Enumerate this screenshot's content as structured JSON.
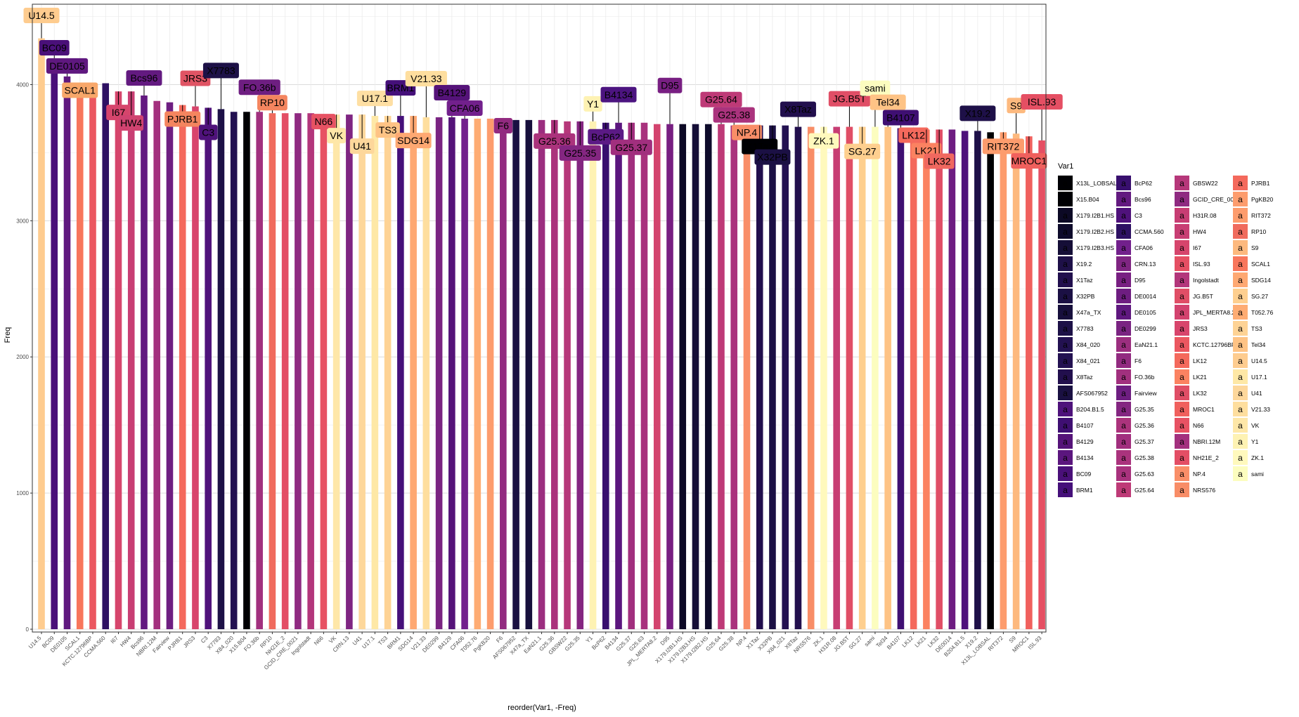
{
  "chart_data": {
    "type": "bar",
    "xlabel": "reorder(Var1, -Freq)",
    "ylabel": "Freq",
    "ylim": [
      0,
      4500
    ],
    "yticks": [
      0,
      1000,
      2000,
      3000,
      4000
    ],
    "grid": true,
    "legend_position": "right",
    "legend_title": "Var1",
    "legend_key_text": "a",
    "categories": [
      "U14.5",
      "BC09",
      "DE0105",
      "SCAL1",
      "KCTC.12796BP",
      "CCMA.560",
      "I67",
      "HW4",
      "Bcs96",
      "NBRI.12M",
      "Fairview",
      "PJRB1",
      "JRS3",
      "C3",
      "X7783",
      "X84_020",
      "X15.B04",
      "FO.36b",
      "RP10",
      "NH21E_2",
      "GCID_CRE_0021",
      "Ingolstadt",
      "N66",
      "VK",
      "CRN.13",
      "U41",
      "U17.1",
      "TS3",
      "BRM1",
      "SDG14",
      "V21.33",
      "DE0299",
      "B4129",
      "CFA06",
      "T052.76",
      "PgKB20",
      "F6",
      "AFS067952",
      "X47a_TX",
      "EaN21.1",
      "G25.36",
      "GBSW22",
      "G25.35",
      "Y1",
      "BcP62",
      "B4134",
      "G25.37",
      "G25.63",
      "JPL_MERTA8.2",
      "D95",
      "X179.I2B1.HS",
      "X179.I2B3.HS",
      "X179.I2B2.HS",
      "G25.64",
      "G25.38",
      "NP.4",
      "X1Taz",
      "X32PB",
      "X84_021",
      "X8Taz",
      "NRS576",
      "ZK.1",
      "H31R.08",
      "JG.B5T",
      "SG.27",
      "sami",
      "Tel34",
      "B4107",
      "LK12",
      "LK21",
      "LK32",
      "DE0014",
      "B204.B1.5",
      "X19.2",
      "X13L_LOBSAL",
      "RIT372",
      "S9",
      "MROC1",
      "ISL.93"
    ],
    "values": [
      4340,
      4090,
      4060,
      4010,
      4000,
      4010,
      3950,
      3950,
      3920,
      3880,
      3870,
      3850,
      3840,
      3830,
      3820,
      3800,
      3800,
      3800,
      3790,
      3790,
      3790,
      3790,
      3780,
      3780,
      3780,
      3780,
      3770,
      3770,
      3770,
      3770,
      3760,
      3760,
      3760,
      3750,
      3750,
      3750,
      3750,
      3740,
      3740,
      3740,
      3740,
      3730,
      3730,
      3730,
      3720,
      3720,
      3720,
      3720,
      3710,
      3710,
      3710,
      3710,
      3710,
      3710,
      3700,
      3700,
      3700,
      3700,
      3700,
      3690,
      3690,
      3690,
      3690,
      3690,
      3690,
      3690,
      3690,
      3680,
      3680,
      3670,
      3670,
      3670,
      3660,
      3660,
      3650,
      3650,
      3640,
      3620,
      3590
    ],
    "bar_colors": [
      "#FECC8F",
      "#4A1079",
      "#5F187F",
      "#F8765C",
      "#EB5760",
      "#2E1163",
      "#D6456C",
      "#C83E73",
      "#631A80",
      "#A3307E",
      "#6E1E81",
      "#F4695C",
      "#D8456C",
      "#4F127B",
      "#1D1147",
      "#231151",
      "#000004",
      "#A1307E",
      "#F06B5D",
      "#E34E65",
      "#8F2A81",
      "#B3367B",
      "#E75263",
      "#FEE7A8",
      "#7F2582",
      "#FDD79B",
      "#FEE8A6",
      "#FED395",
      "#45107A",
      "#FEA872",
      "#FEDE9E",
      "#7A2482",
      "#551379",
      "#72208C",
      "#FEAC73",
      "#FD9C6D",
      "#922A80",
      "#1A1042",
      "#170F3C",
      "#9B2E7F",
      "#AB337C",
      "#B6377A",
      "#842681",
      "#FEF2B3",
      "#380F6E",
      "#5B167E",
      "#A12F7E",
      "#A8327D",
      "#D3436E",
      "#781F82",
      "#0C0925",
      "#150E37",
      "#0E0B2B",
      "#BE3A77",
      "#AA337D",
      "#F98E68",
      "#210F4D",
      "#1B1044",
      "#231151",
      "#220F4D",
      "#F88D67",
      "#FFF9BD",
      "#C73D73",
      "#E04E66",
      "#FECF8F",
      "#FCFDBF",
      "#FEC385",
      "#3F0F72",
      "#F4695C",
      "#FB8261",
      "#E04E66",
      "#6E1D81",
      "#4E127B",
      "#1E1048",
      "#000004",
      "#FD9C6D",
      "#FDB97E",
      "#F0605D",
      "#E54F63"
    ],
    "annotations": [
      {
        "text": "U14.5",
        "target": "U14.5",
        "fill": "#FECC8F",
        "color": "#000000"
      },
      {
        "text": "BC09",
        "target": "BC09",
        "fill": "#4A1079",
        "color": "#000000"
      },
      {
        "text": "DE0105",
        "target": "DE0105",
        "fill": "#5F187F",
        "color": "#000000"
      },
      {
        "text": "SCAL1",
        "target": "SCAL1",
        "fill": "#F8A76A",
        "color": "#000000"
      },
      {
        "text": "I67",
        "target": "I67",
        "fill": "#D6456C",
        "color": "#000000"
      },
      {
        "text": "HW4",
        "target": "HW4",
        "fill": "#D04370",
        "color": "#000000"
      },
      {
        "text": "Bcs96",
        "target": "Bcs96",
        "fill": "#631A80",
        "color": "#000000"
      },
      {
        "text": "PJRB1",
        "target": "PJRB1",
        "fill": "#F4855F",
        "color": "#000000"
      },
      {
        "text": "JRS3",
        "target": "JRS3",
        "fill": "#E05464",
        "color": "#000000"
      },
      {
        "text": "C3",
        "target": "C3",
        "fill": "#4F127B",
        "color": "#000000"
      },
      {
        "text": "X7783",
        "target": "X7783",
        "fill": "#1D1147",
        "color": "#000000"
      },
      {
        "text": "FO.36b",
        "target": "FO.36b",
        "fill": "#6E1E81",
        "color": "#000000"
      },
      {
        "text": "RP10",
        "target": "RP10",
        "fill": "#F4855F",
        "color": "#000000"
      },
      {
        "text": "N66",
        "target": "N66",
        "fill": "#E75263",
        "color": "#000000"
      },
      {
        "text": "VK",
        "target": "VK",
        "fill": "#FEE7A8",
        "color": "#000000"
      },
      {
        "text": "U41",
        "target": "U41",
        "fill": "#FDD79B",
        "color": "#000000"
      },
      {
        "text": "U17.1",
        "target": "U17.1",
        "fill": "#FEDFA3",
        "color": "#000000"
      },
      {
        "text": "TS3",
        "target": "TS3",
        "fill": "#FEC385",
        "color": "#000000"
      },
      {
        "text": "BRM1",
        "target": "BRM1",
        "fill": "#45107A",
        "color": "#000000"
      },
      {
        "text": "SDG14",
        "target": "SDG14",
        "fill": "#FEA872",
        "color": "#000000"
      },
      {
        "text": "V21.33",
        "target": "V21.33",
        "fill": "#FEDE9E",
        "color": "#000000"
      },
      {
        "text": "B4129",
        "target": "B4129",
        "fill": "#551379",
        "color": "#000000"
      },
      {
        "text": "CFA06",
        "target": "CFA06",
        "fill": "#72208C",
        "color": "#000000"
      },
      {
        "text": "F6",
        "target": "F6",
        "fill": "#922A80",
        "color": "#000000"
      },
      {
        "text": "G25.36",
        "target": "G25.36",
        "fill": "#AB337C",
        "color": "#000000"
      },
      {
        "text": "G25.35",
        "target": "G25.35",
        "fill": "#842681",
        "color": "#000000"
      },
      {
        "text": "Y1",
        "target": "Y1",
        "fill": "#FEF2B3",
        "color": "#000000"
      },
      {
        "text": "BcP62",
        "target": "BcP62",
        "fill": "#5B1A85",
        "color": "#000000"
      },
      {
        "text": "B4134",
        "target": "B4134",
        "fill": "#4C1480",
        "color": "#000000"
      },
      {
        "text": "G25.37",
        "target": "G25.37",
        "fill": "#A12F7E",
        "color": "#000000"
      },
      {
        "text": "D95",
        "target": "D95",
        "fill": "#781F82",
        "color": "#000000"
      },
      {
        "text": "G25.64",
        "target": "G25.64",
        "fill": "#BE3A77",
        "color": "#000000"
      },
      {
        "text": "G25.38",
        "target": "G25.38",
        "fill": "#AA337D",
        "color": "#000000"
      },
      {
        "text": "NP.4",
        "target": "NP.4",
        "fill": "#F98E68",
        "color": "#000000"
      },
      {
        "text": "X1Taz",
        "target": "X1Taz",
        "fill": "#000004",
        "color": "#000000"
      },
      {
        "text": "X32PB",
        "target": "X32PB",
        "fill": "#1B1044",
        "color": "#000000"
      },
      {
        "text": "X8Taz",
        "target": "X8Taz",
        "fill": "#220F4D",
        "color": "#000000"
      },
      {
        "text": "ZK.1",
        "target": "ZK.1",
        "fill": "#FFF9BD",
        "color": "#000000"
      },
      {
        "text": "JG.B5T",
        "target": "JG.B5T",
        "fill": "#E04E66",
        "color": "#000000"
      },
      {
        "text": "SG.27",
        "target": "SG.27",
        "fill": "#FECF8F",
        "color": "#000000"
      },
      {
        "text": "sami",
        "target": "sami",
        "fill": "#FCFDBF",
        "color": "#000000"
      },
      {
        "text": "Tel34",
        "target": "Tel34",
        "fill": "#FEC385",
        "color": "#000000"
      },
      {
        "text": "B4107",
        "target": "B4107",
        "fill": "#3F0F72",
        "color": "#000000"
      },
      {
        "text": "LK12",
        "target": "LK12",
        "fill": "#F4695C",
        "color": "#000000"
      },
      {
        "text": "LK21",
        "target": "LK21",
        "fill": "#FB8261",
        "color": "#000000"
      },
      {
        "text": "LK32",
        "target": "LK32",
        "fill": "#F0685F",
        "color": "#000000"
      },
      {
        "text": "X19.2",
        "target": "X19.2",
        "fill": "#1E1048",
        "color": "#000000"
      },
      {
        "text": "RIT372",
        "target": "RIT372",
        "fill": "#FD9C6D",
        "color": "#000000"
      },
      {
        "text": "S9",
        "target": "S9",
        "fill": "#FDB97E",
        "color": "#000000"
      },
      {
        "text": "MROC1",
        "target": "MROC1",
        "fill": "#F0605D",
        "color": "#000000"
      },
      {
        "text": "ISL.93",
        "target": "ISL.93",
        "fill": "#E54F63",
        "color": "#000000"
      }
    ],
    "legend_columns": [
      [
        {
          "label": "X13L_LOBSAL",
          "color": "#000004"
        },
        {
          "label": "X15.B04",
          "color": "#000004"
        },
        {
          "label": "X179.I2B1.HS",
          "color": "#0C0925"
        },
        {
          "label": "X179.I2B2.HS",
          "color": "#0E0B2B"
        },
        {
          "label": "X179.I2B3.HS",
          "color": "#150E37"
        },
        {
          "label": "X19.2",
          "color": "#1E1048"
        },
        {
          "label": "X1Taz",
          "color": "#210F4D"
        },
        {
          "label": "X32PB",
          "color": "#1B1044"
        },
        {
          "label": "X47a_TX",
          "color": "#170F3C"
        },
        {
          "label": "X7783",
          "color": "#1D1147"
        },
        {
          "label": "X84_020",
          "color": "#231151"
        },
        {
          "label": "X84_021",
          "color": "#231151"
        },
        {
          "label": "X8Taz",
          "color": "#220F4D"
        },
        {
          "label": "AFS067952",
          "color": "#1A1042"
        },
        {
          "label": "B204.B1.5",
          "color": "#4E127B"
        },
        {
          "label": "B4107",
          "color": "#3F0F72"
        },
        {
          "label": "B4129",
          "color": "#551379"
        },
        {
          "label": "B4134",
          "color": "#5B167E"
        },
        {
          "label": "BC09",
          "color": "#4A1079"
        },
        {
          "label": "BRM1",
          "color": "#45107A"
        }
      ],
      [
        {
          "label": "BcP62",
          "color": "#380F6E"
        },
        {
          "label": "Bcs96",
          "color": "#631A80"
        },
        {
          "label": "C3",
          "color": "#4F127B"
        },
        {
          "label": "CCMA.560",
          "color": "#2E1163"
        },
        {
          "label": "CFA06",
          "color": "#72208C"
        },
        {
          "label": "CRN.13",
          "color": "#7F2582"
        },
        {
          "label": "D95",
          "color": "#781F82"
        },
        {
          "label": "DE0014",
          "color": "#6E1D81"
        },
        {
          "label": "DE0105",
          "color": "#5F187F"
        },
        {
          "label": "DE0299",
          "color": "#7A2482"
        },
        {
          "label": "EaN21.1",
          "color": "#9B2E7F"
        },
        {
          "label": "F6",
          "color": "#922A80"
        },
        {
          "label": "FO.36b",
          "color": "#A1307E"
        },
        {
          "label": "Fairview",
          "color": "#6E1E81"
        },
        {
          "label": "G25.35",
          "color": "#842681"
        },
        {
          "label": "G25.36",
          "color": "#AB337C"
        },
        {
          "label": "G25.37",
          "color": "#A12F7E"
        },
        {
          "label": "G25.38",
          "color": "#AA337D"
        },
        {
          "label": "G25.63",
          "color": "#A8327D"
        },
        {
          "label": "G25.64",
          "color": "#BE3A77"
        }
      ],
      [
        {
          "label": "GBSW22",
          "color": "#B6377A"
        },
        {
          "label": "GCID_CRE_0021",
          "color": "#8F2A81"
        },
        {
          "label": "H31R.08",
          "color": "#C73D73"
        },
        {
          "label": "HW4",
          "color": "#C83E73"
        },
        {
          "label": "I67",
          "color": "#D6456C"
        },
        {
          "label": "ISL.93",
          "color": "#E54F63"
        },
        {
          "label": "Ingolstadt",
          "color": "#B3367B"
        },
        {
          "label": "JG.B5T",
          "color": "#E04E66"
        },
        {
          "label": "JPL_MERTA8.2",
          "color": "#D3436E"
        },
        {
          "label": "JRS3",
          "color": "#D8456C"
        },
        {
          "label": "KCTC.12796BP",
          "color": "#EB5760"
        },
        {
          "label": "LK12",
          "color": "#F4695C"
        },
        {
          "label": "LK21",
          "color": "#FB8261"
        },
        {
          "label": "LK32",
          "color": "#E04E66"
        },
        {
          "label": "MROC1",
          "color": "#F0605D"
        },
        {
          "label": "N66",
          "color": "#E75263"
        },
        {
          "label": "NBRI.12M",
          "color": "#A3307E"
        },
        {
          "label": "NH21E_2",
          "color": "#E34E65"
        },
        {
          "label": "NP.4",
          "color": "#F98E68"
        },
        {
          "label": "NRS576",
          "color": "#F88D67"
        }
      ],
      [
        {
          "label": "PJRB1",
          "color": "#F4695C"
        },
        {
          "label": "PgKB20",
          "color": "#FD9C6D"
        },
        {
          "label": "RIT372",
          "color": "#FD9C6D"
        },
        {
          "label": "RP10",
          "color": "#F06B5D"
        },
        {
          "label": "S9",
          "color": "#FDB97E"
        },
        {
          "label": "SCAL1",
          "color": "#F8765C"
        },
        {
          "label": "SDG14",
          "color": "#FEA872"
        },
        {
          "label": "SG.27",
          "color": "#FECF8F"
        },
        {
          "label": "T052.76",
          "color": "#FEAC73"
        },
        {
          "label": "TS3",
          "color": "#FED395"
        },
        {
          "label": "Tel34",
          "color": "#FEC385"
        },
        {
          "label": "U14.5",
          "color": "#FECC8F"
        },
        {
          "label": "U17.1",
          "color": "#FEE8A6"
        },
        {
          "label": "U41",
          "color": "#FDD79B"
        },
        {
          "label": "V21.33",
          "color": "#FEDE9E"
        },
        {
          "label": "VK",
          "color": "#FEE7A8"
        },
        {
          "label": "Y1",
          "color": "#FEF2B3"
        },
        {
          "label": "ZK.1",
          "color": "#FFF9BD"
        },
        {
          "label": "sami",
          "color": "#FCFDBF"
        }
      ]
    ]
  }
}
